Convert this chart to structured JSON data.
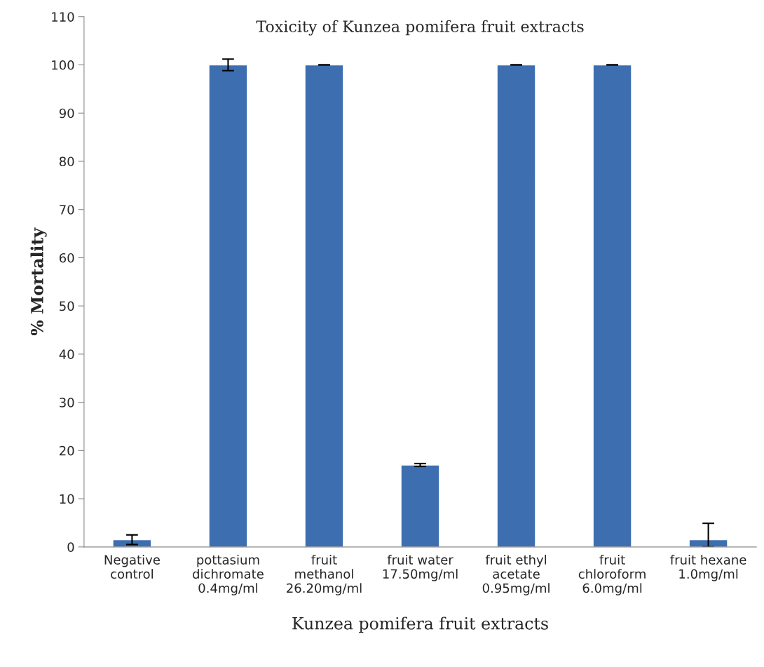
{
  "chart_data": {
    "type": "bar",
    "title": "Toxicity of Kunzea pomifera fruit extracts",
    "xlabel": "Kunzea pomifera fruit extracts",
    "ylabel": "% Mortality",
    "categories": [
      "Negative\ncontrol",
      "pottasium\ndichromate\n0.4mg/ml",
      "fruit\nmethanol\n26.20mg/ml",
      "fruit water\n17.50mg/ml",
      "fruit ethyl\nacetate\n0.95mg/ml",
      "fruit\nchloroform\n6.0mg/ml",
      "fruit hexane\n1.0mg/ml"
    ],
    "values": [
      1.5,
      100,
      100,
      17,
      100,
      100,
      1.5
    ],
    "errors": [
      1,
      1.2,
      0,
      0.3,
      0,
      0,
      [
        0,
        4.9
      ]
    ],
    "color": "#3d6eb0",
    "ylim": [
      0,
      110
    ],
    "yticks": [
      0,
      10,
      20,
      30,
      40,
      50,
      60,
      70,
      80,
      90,
      100,
      110
    ],
    "grid": false
  }
}
